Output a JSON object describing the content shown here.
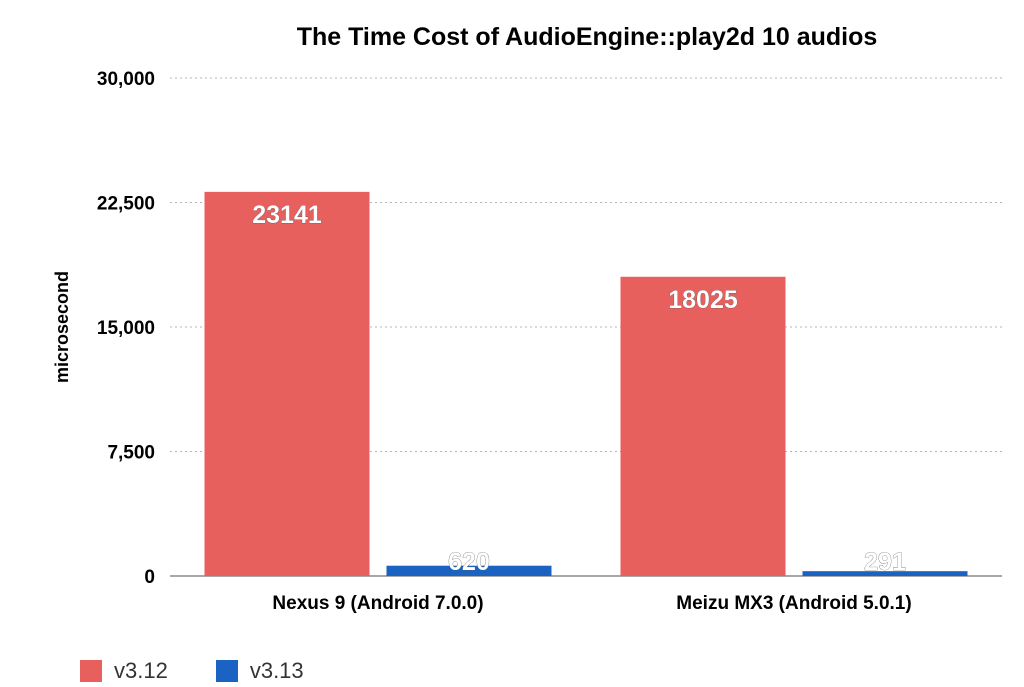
{
  "chart_data": {
    "type": "bar",
    "title": "The Time Cost of AudioEngine::play2d 10 audios",
    "ylabel": "microsecond",
    "xlabel": "",
    "categories": [
      "Nexus 9 (Android 7.0.0)",
      "Meizu MX3 (Android 5.0.1)"
    ],
    "series": [
      {
        "name": "v3.12",
        "values": [
          23141,
          18025
        ],
        "color": "#E8605D"
      },
      {
        "name": "v3.13",
        "values": [
          620,
          291
        ],
        "color": "#1A63C2"
      }
    ],
    "ylim": [
      0,
      30000
    ],
    "yticks": [
      0,
      7500,
      15000,
      22500,
      30000
    ],
    "ytick_labels": [
      "0",
      "7,500",
      "15,000",
      "22,500",
      "30,000"
    ],
    "grid": true,
    "legend_position": "bottom-left",
    "data_labels": true
  }
}
